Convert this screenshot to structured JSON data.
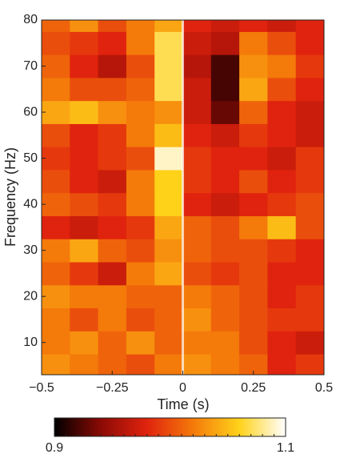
{
  "chart_data": {
    "type": "heatmap",
    "xlabel": "Time (s)",
    "ylabel": "Frequency (Hz)",
    "x": [
      -0.45,
      -0.35,
      -0.25,
      -0.15,
      -0.05,
      0.05,
      0.15,
      0.25,
      0.35,
      0.45
    ],
    "y": [
      5,
      10,
      15,
      20,
      25,
      30,
      35,
      40,
      45,
      50,
      55,
      60,
      65,
      70,
      75,
      80
    ],
    "values": [
      [
        1.03,
        1.02,
        1.01,
        1.0,
        1.02,
        1.03,
        1.02,
        1.01,
        0.98,
        0.99
      ],
      [
        1.02,
        1.03,
        1.01,
        1.03,
        1.01,
        1.02,
        1.02,
        1.0,
        0.98,
        0.97
      ],
      [
        1.02,
        1.0,
        1.02,
        1.0,
        1.01,
        1.03,
        1.01,
        1.0,
        0.99,
        0.99
      ],
      [
        1.03,
        1.02,
        1.02,
        1.01,
        1.01,
        1.02,
        1.01,
        1.0,
        0.98,
        0.99
      ],
      [
        1.01,
        0.99,
        0.97,
        1.02,
        1.04,
        1.0,
        0.99,
        1.0,
        0.98,
        0.98
      ],
      [
        1.02,
        1.04,
        1.01,
        1.0,
        1.03,
        1.01,
        1.0,
        1.0,
        0.99,
        0.98
      ],
      [
        0.98,
        0.97,
        0.98,
        0.99,
        1.04,
        1.01,
        1.0,
        1.02,
        1.05,
        1.0
      ],
      [
        1.01,
        1.0,
        0.99,
        1.02,
        1.06,
        0.98,
        0.97,
        0.98,
        0.99,
        1.0
      ],
      [
        1.0,
        0.98,
        0.97,
        1.02,
        1.06,
        0.99,
        0.98,
        1.0,
        0.98,
        0.99
      ],
      [
        0.99,
        0.98,
        0.99,
        1.0,
        1.09,
        0.99,
        0.98,
        0.98,
        0.97,
        0.99
      ],
      [
        1.0,
        0.98,
        0.99,
        1.02,
        1.05,
        0.98,
        0.97,
        0.99,
        0.98,
        0.97
      ],
      [
        1.04,
        1.05,
        1.03,
        1.02,
        1.03,
        0.97,
        0.93,
        1.01,
        0.98,
        0.97
      ],
      [
        1.02,
        1.0,
        1.0,
        1.01,
        1.07,
        0.97,
        0.92,
        1.04,
        1.0,
        0.98
      ],
      [
        1.01,
        0.98,
        0.96,
        1.0,
        1.07,
        0.96,
        0.92,
        1.03,
        1.02,
        0.99
      ],
      [
        1.0,
        0.99,
        0.98,
        1.02,
        1.07,
        0.97,
        0.96,
        1.02,
        1.0,
        0.98
      ],
      [
        1.01,
        1.03,
        1.0,
        1.02,
        1.04,
        0.98,
        0.97,
        0.98,
        0.97,
        0.98
      ]
    ],
    "xlim": [
      -0.5,
      0.5
    ],
    "xticks": [
      {
        "value": -0.5,
        "label": "−0.5"
      },
      {
        "value": -0.25,
        "label": "−0.25"
      },
      0,
      0.25,
      0.5
    ],
    "ylim": [
      3,
      80
    ],
    "yticks": [
      10,
      20,
      30,
      40,
      50,
      60,
      70,
      80
    ],
    "vline": 0,
    "clim": [
      0.9,
      1.1
    ],
    "cticks": [
      0.9,
      1.1
    ],
    "colormap": [
      "#000000",
      "#8b0a05",
      "#e0230e",
      "#f47a0a",
      "#ffd21a",
      "#ffffff"
    ]
  }
}
